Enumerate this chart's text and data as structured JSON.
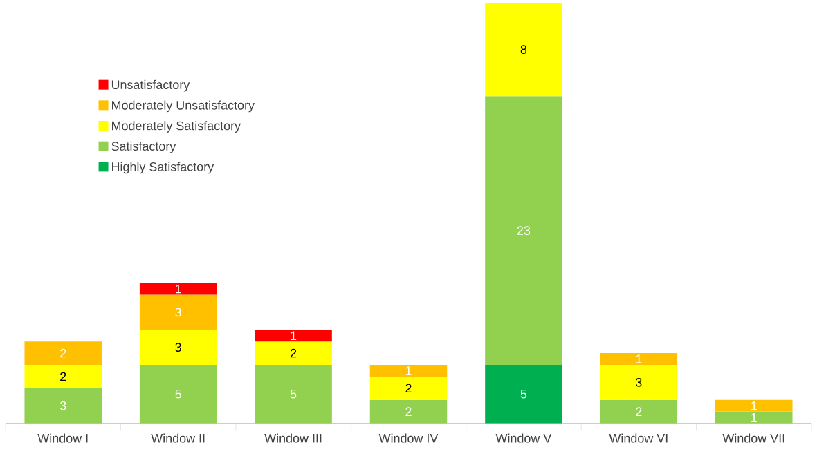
{
  "chart_data": {
    "type": "bar",
    "stacked": true,
    "data_labels": true,
    "legend": "top left",
    "categories": [
      "Window I",
      "Window II",
      "Window III",
      "Window IV",
      "Window V",
      "Window VI",
      "Window VII"
    ],
    "series": [
      {
        "name": "Highly Satisfactory",
        "color": "#00b050",
        "values": [
          null,
          null,
          null,
          null,
          5,
          null,
          null
        ]
      },
      {
        "name": "Satisfactory",
        "color": "#92d050",
        "values": [
          3,
          5,
          5,
          2,
          23,
          2,
          1
        ]
      },
      {
        "name": "Moderately Satisfactory",
        "color": "#ffff00",
        "values": [
          2,
          3,
          2,
          2,
          8,
          3,
          null
        ]
      },
      {
        "name": "Moderately Unsatisfactory",
        "color": "#ffc000",
        "values": [
          2,
          3,
          null,
          1,
          null,
          1,
          1
        ]
      },
      {
        "name": "Unsatisfactory",
        "color": "#ff0000",
        "values": [
          null,
          1,
          1,
          null,
          null,
          null,
          null
        ]
      }
    ]
  }
}
